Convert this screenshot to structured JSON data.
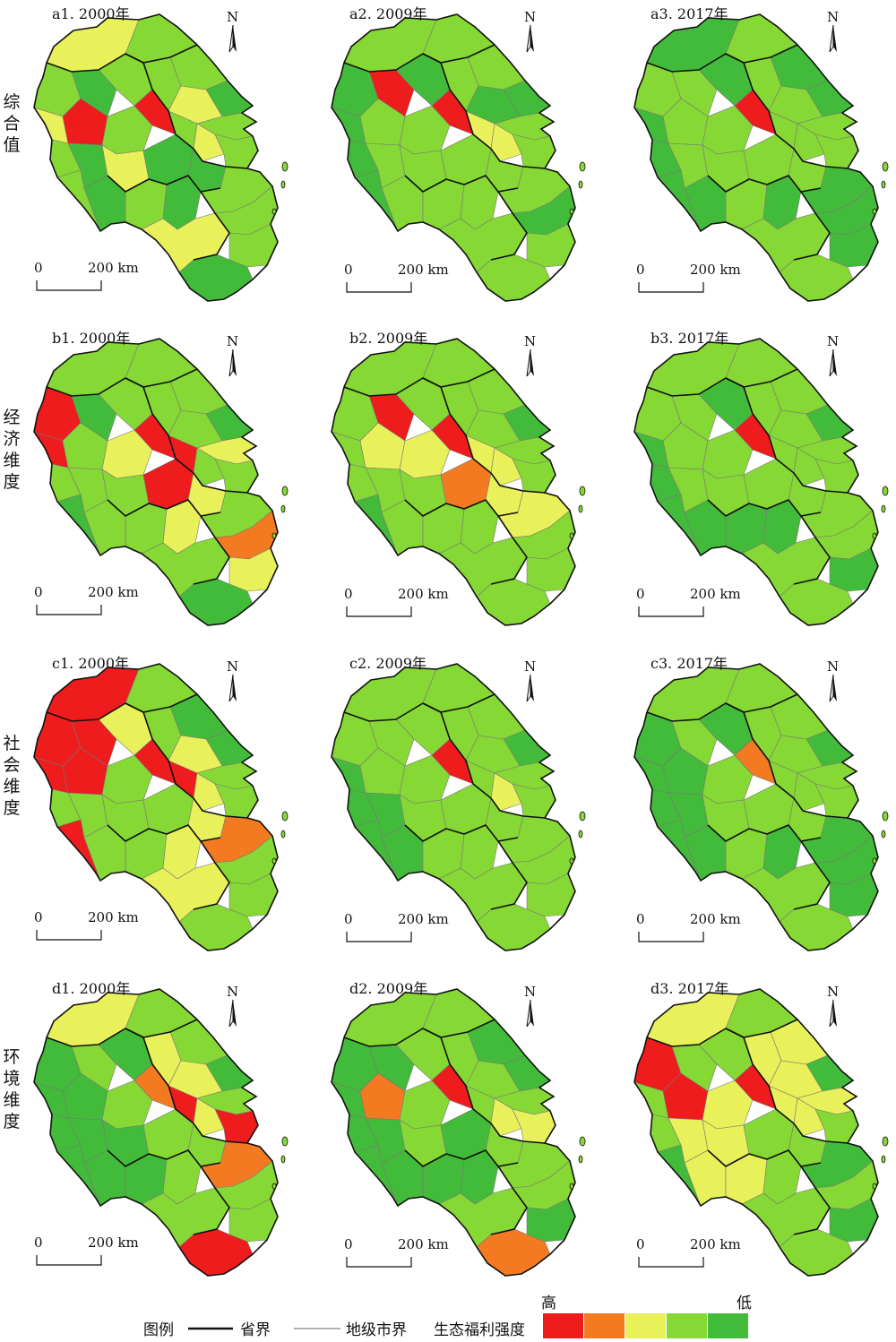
{
  "row_labels": [
    {
      "id": "a",
      "text": "综合值"
    },
    {
      "id": "b",
      "text": "经济维度"
    },
    {
      "id": "c",
      "text": "社会维度"
    },
    {
      "id": "d",
      "text": "环境维度"
    }
  ],
  "panels": [
    {
      "id": "a1",
      "title": "a1. 2000年"
    },
    {
      "id": "a2",
      "title": "a2. 2009年"
    },
    {
      "id": "a3",
      "title": "a3. 2017年"
    },
    {
      "id": "b1",
      "title": "b1. 2000年"
    },
    {
      "id": "b2",
      "title": "b2. 2009年"
    },
    {
      "id": "b3",
      "title": "b3. 2017年"
    },
    {
      "id": "c1",
      "title": "c1. 2000年"
    },
    {
      "id": "c2",
      "title": "c2. 2009年"
    },
    {
      "id": "c3",
      "title": "c3. 2017年"
    },
    {
      "id": "d1",
      "title": "d1. 2000年"
    },
    {
      "id": "d2",
      "title": "d2. 2009年"
    },
    {
      "id": "d3",
      "title": "d3. 2017年"
    }
  ],
  "north_label": "N",
  "scale": {
    "zero": "0",
    "distance": "200 km"
  },
  "legend": {
    "title": "图例",
    "province_border": "省界",
    "city_border": "地级市界",
    "intensity_label": "生态福利强度",
    "high": "高",
    "low": "低",
    "classes": [
      "#ee1c1c",
      "#f47a22",
      "#e8f05a",
      "#86d835",
      "#43bb3a"
    ]
  }
}
